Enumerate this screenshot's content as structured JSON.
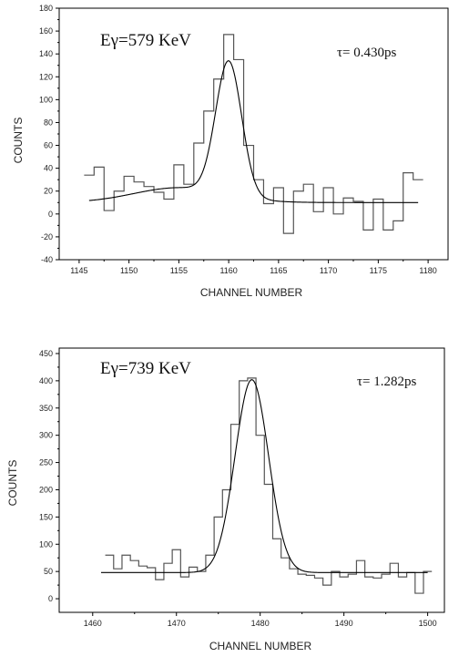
{
  "chart_data": [
    {
      "type": "line",
      "xlabel": "CHANNEL NUMBER",
      "ylabel": "COUNTS",
      "xlim": [
        1143,
        1182
      ],
      "ylim": [
        -40,
        180
      ],
      "xticks": [
        1145,
        1150,
        1155,
        1160,
        1165,
        1170,
        1175,
        1180
      ],
      "yticks": [
        -40,
        -20,
        0,
        20,
        40,
        60,
        80,
        100,
        120,
        140,
        160,
        180
      ],
      "annotations": [
        "Eγ=579 KeV",
        "τ= 0.430ps"
      ],
      "series": [
        {
          "kind": "histogram-step",
          "x": [
            1146,
            1147,
            1148,
            1149,
            1150,
            1151,
            1152,
            1153,
            1154,
            1155,
            1156,
            1157,
            1158,
            1159,
            1160,
            1161,
            1162,
            1163,
            1164,
            1165,
            1166,
            1167,
            1168,
            1169,
            1170,
            1171,
            1172,
            1173,
            1174,
            1175,
            1176,
            1177,
            1178,
            1179
          ],
          "y": [
            34,
            41,
            3,
            20,
            33,
            28,
            24,
            19,
            13,
            43,
            26,
            62,
            90,
            118,
            157,
            135,
            60,
            30,
            9,
            23,
            -17,
            20,
            26,
            2,
            23,
            0,
            14,
            11,
            -14,
            13,
            -14,
            -6,
            36,
            30
          ]
        },
        {
          "kind": "fit",
          "model": {
            "background": [
              10,
              0.55,
              1146
            ],
            "tail": {
              "A": 13,
              "center": 1155,
              "sigma": 4.5
            },
            "peak": {
              "A": 117,
              "center": 1160,
              "sigma": 1.3
            }
          },
          "x_range": [
            1146,
            1179
          ]
        }
      ]
    },
    {
      "type": "line",
      "xlabel": "CHANNEL NUMBER",
      "ylabel": "COUNTS",
      "xlim": [
        1456,
        1502
      ],
      "ylim": [
        -25,
        460
      ],
      "xticks": [
        1460,
        1470,
        1480,
        1490,
        1500
      ],
      "yticks": [
        0,
        50,
        100,
        150,
        200,
        250,
        300,
        350,
        400,
        450
      ],
      "annotations": [
        "Eγ=739 KeV",
        "τ= 1.282ps"
      ],
      "series": [
        {
          "kind": "histogram-step",
          "x": [
            1462,
            1463,
            1464,
            1465,
            1466,
            1467,
            1468,
            1469,
            1470,
            1471,
            1472,
            1473,
            1474,
            1475,
            1476,
            1477,
            1478,
            1479,
            1480,
            1481,
            1482,
            1483,
            1484,
            1485,
            1486,
            1487,
            1488,
            1489,
            1490,
            1491,
            1492,
            1493,
            1494,
            1495,
            1496,
            1497,
            1498,
            1499,
            1500
          ],
          "y": [
            80,
            55,
            80,
            70,
            60,
            57,
            35,
            65,
            90,
            40,
            58,
            50,
            80,
            150,
            200,
            320,
            400,
            405,
            300,
            210,
            110,
            75,
            55,
            45,
            43,
            38,
            25,
            50,
            40,
            45,
            70,
            40,
            38,
            45,
            65,
            40,
            48,
            10,
            50
          ]
        },
        {
          "kind": "fit",
          "model": {
            "background": [
              48,
              0.1,
              1461
            ],
            "peak": {
              "A": 354,
              "center": 1479,
              "sigma": 2.0
            }
          },
          "x_range": [
            1461,
            1500
          ]
        }
      ]
    }
  ]
}
